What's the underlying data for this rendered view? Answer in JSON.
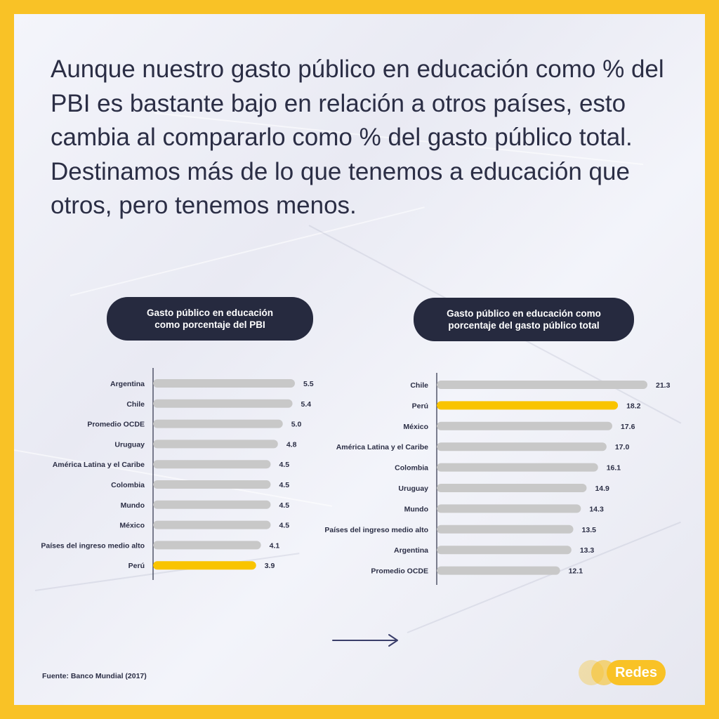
{
  "headline": "Aunque nuestro gasto público en educación como % del PBI es bastante bajo en relación a otros países, esto cambia al compararlo como % del gasto público total. Destinamos más de lo que tenemos a educación que otros, pero tenemos menos.",
  "colors": {
    "highlight": "#f9c400",
    "bar": "#c8c8c8",
    "pill": "#262a3f",
    "frame": "#f9c226",
    "text": "#2b2e45"
  },
  "chart_data": [
    {
      "type": "bar",
      "orientation": "horizontal",
      "title_lines": [
        "Gasto público en educación",
        "como porcentaje del PBI"
      ],
      "categories": [
        "Argentina",
        "Chile",
        "Promedio OCDE",
        "Uruguay",
        "América Latina y el Caribe",
        "Colombia",
        "Mundo",
        "México",
        "Países del ingreso medio alto",
        "Perú"
      ],
      "values": [
        5.5,
        5.4,
        5.0,
        4.8,
        4.5,
        4.5,
        4.5,
        4.5,
        4.1,
        3.9
      ],
      "value_labels": [
        "5.5",
        "5.4",
        "5.0",
        "4.8",
        "4.5",
        "4.5",
        "4.5",
        "4.5",
        "4.1",
        "3.9"
      ],
      "highlight": "Perú",
      "xlim": [
        0,
        5.5
      ],
      "grid": false
    },
    {
      "type": "bar",
      "orientation": "horizontal",
      "title_lines": [
        "Gasto público en educación como",
        "porcentaje del gasto público total"
      ],
      "categories": [
        "Chile",
        "Perú",
        "México",
        "América Latina y el Caribe",
        "Colombia",
        "Uruguay",
        "Mundo",
        "Países del ingreso medio alto",
        "Argentina",
        "Promedio OCDE"
      ],
      "values": [
        21.3,
        18.2,
        17.6,
        17.0,
        16.1,
        14.9,
        14.3,
        13.5,
        13.3,
        12.1
      ],
      "value_labels": [
        "21.3",
        "18.2",
        "17.6",
        "17.0",
        "16.1",
        "14.9",
        "14.3",
        "13.5",
        "13.3",
        "12.1"
      ],
      "highlight": "Perú",
      "xlim": [
        0,
        21.3
      ],
      "grid": false
    }
  ],
  "source": "Fuente: Banco Mundial (2017)",
  "arrow_icon": "arrow-right-icon",
  "logo": {
    "text": "Redes"
  }
}
